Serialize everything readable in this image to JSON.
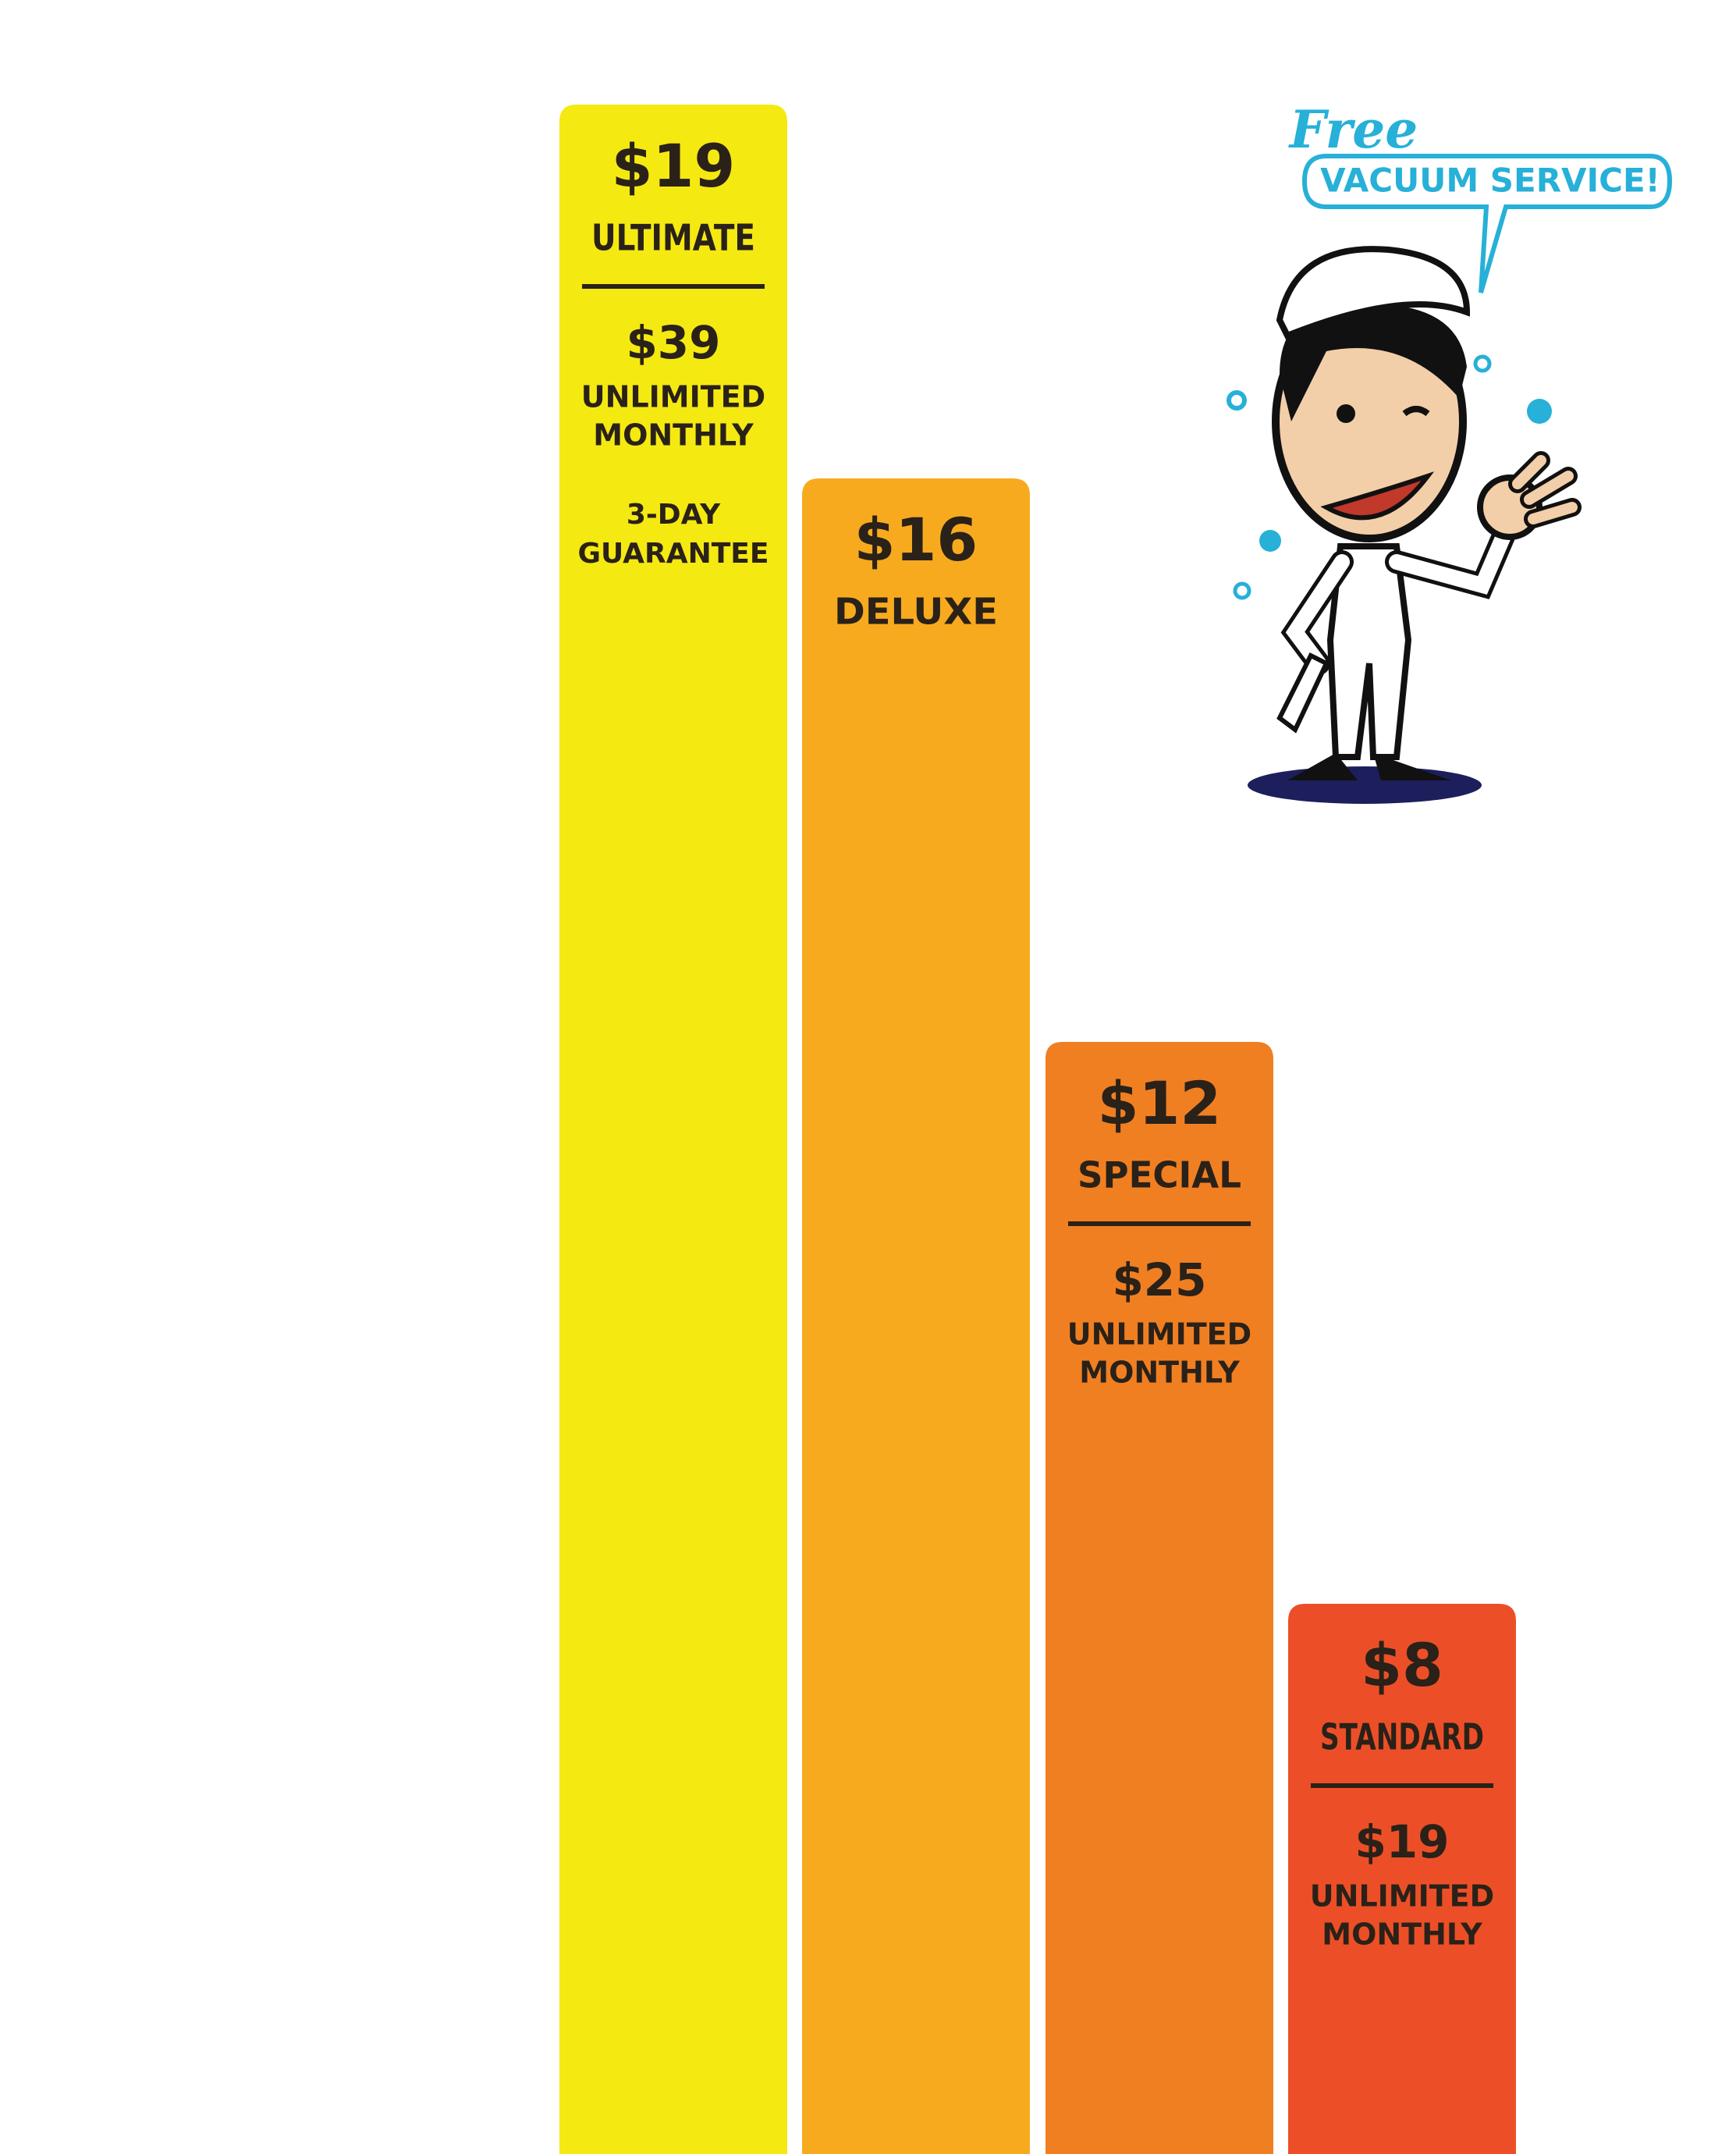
{
  "bubble": {
    "free": "Free",
    "text": "VACUUM SERVICE!"
  },
  "plans": [
    {
      "price": "$19",
      "name": "ULTIMATE",
      "monthly_price": "$39",
      "monthly_label": [
        "UNLIMITED",
        "MONTHLY"
      ],
      "extra": [
        "3-DAY",
        "GUARANTEE"
      ]
    },
    {
      "price": "$16",
      "name": "DELUXE"
    },
    {
      "price": "$12",
      "name": "SPECIAL",
      "monthly_price": "$25",
      "monthly_label": [
        "UNLIMITED",
        "MONTHLY"
      ]
    },
    {
      "price": "$8",
      "name": "STANDARD",
      "monthly_price": "$19",
      "monthly_label": [
        "UNLIMITED",
        "MONTHLY"
      ]
    }
  ]
}
